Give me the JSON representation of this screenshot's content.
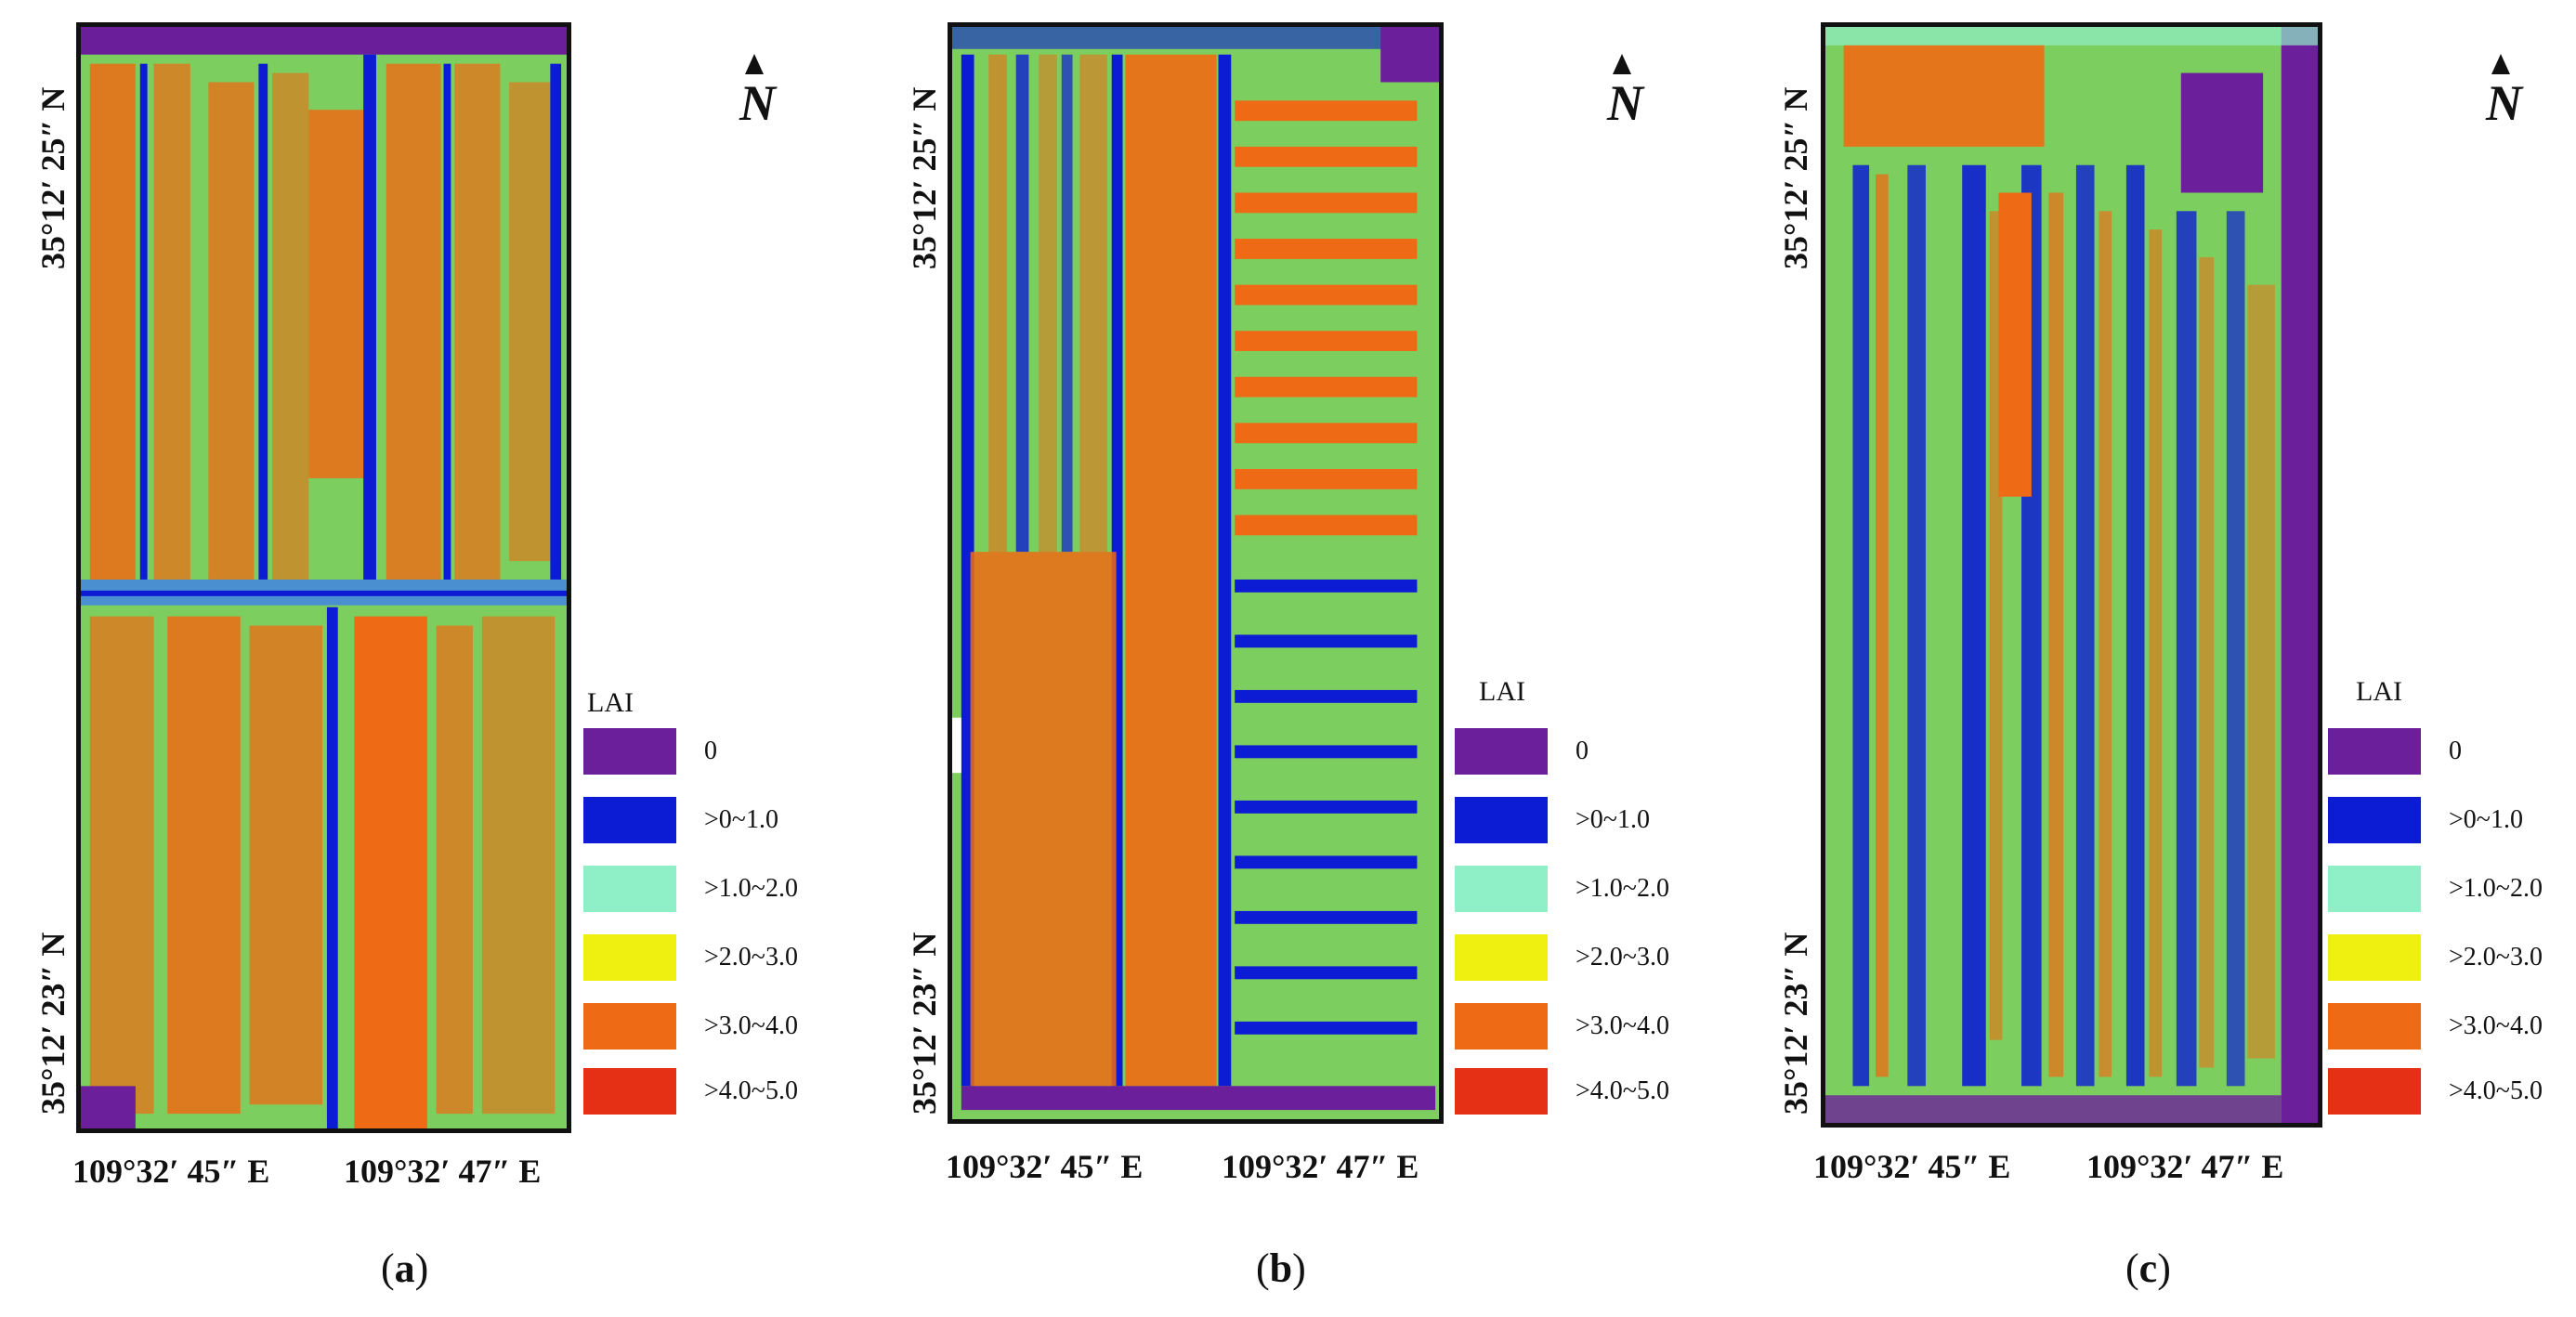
{
  "legend": {
    "title": "LAI",
    "classes": [
      {
        "label": "0",
        "color": "#6b1f9a"
      },
      {
        "label": ">0~1.0",
        "color": "#0c1cd4"
      },
      {
        "label": ">1.0~2.0",
        "color": "#8ff0c8"
      },
      {
        "label": ">2.0~3.0",
        "color": "#f0f010"
      },
      {
        "label": ">3.0~4.0",
        "color": "#ef6a14"
      },
      {
        "label": ">4.0~5.0",
        "color": "#e53016"
      }
    ]
  },
  "panels": [
    {
      "caption_open": "(",
      "caption_letter": "a",
      "caption_close": ")",
      "lat_top": "35°12′ 25″ N",
      "lat_bottom": "35°12′ 23″ N",
      "lon_left": "109°32′ 45″ E",
      "lon_right": "109°32′ 47″ E",
      "north": "N"
    },
    {
      "caption_open": "(",
      "caption_letter": "b",
      "caption_close": ")",
      "lat_top": "35°12′ 25″ N",
      "lat_bottom": "35°12′ 23″ N",
      "lon_left": "109°32′ 45″ E",
      "lon_right": "109°32′ 47″ E",
      "north": "N"
    },
    {
      "caption_open": "(",
      "caption_letter": "c",
      "caption_close": ")",
      "lat_top": "35°12′ 25″ N",
      "lat_bottom": "35°12′ 23″ N",
      "lon_left": "109°32′ 45″ E",
      "lon_right": "109°32′ 47″ E",
      "north": "N"
    }
  ]
}
